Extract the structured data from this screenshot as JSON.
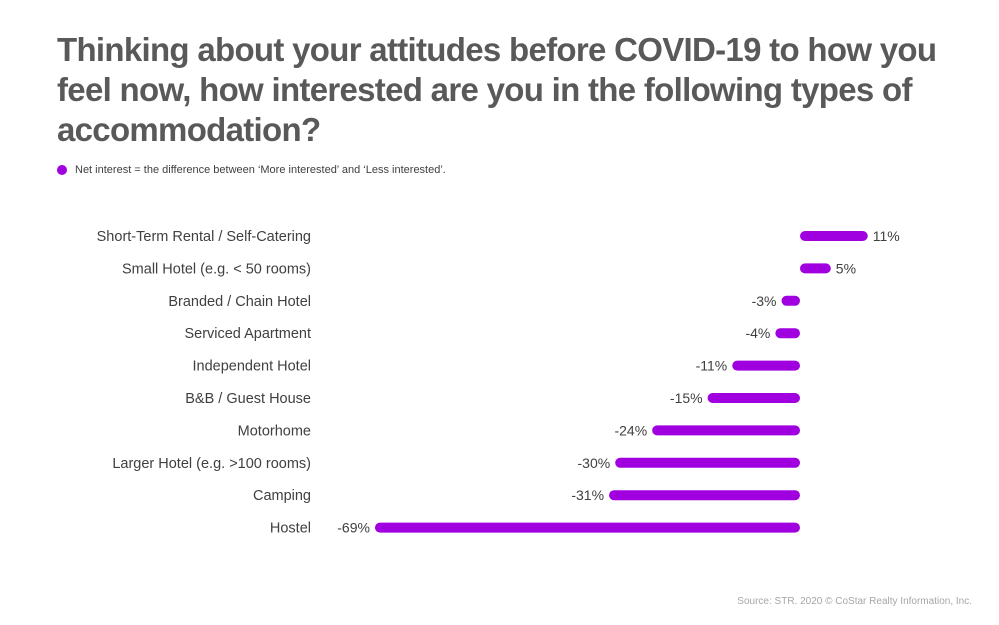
{
  "title": "Thinking about your attitudes before COVID-19 to how you feel now, how interested are you in the following types of accommodation?",
  "legend": {
    "label": "Net interest = the difference between ‘More interested’ and ‘Less interested’."
  },
  "source": "Source: STR. 2020 © CoStar Realty Information, Inc.",
  "colors": {
    "bar": "#a000e0",
    "label": "#404040",
    "title": "#595959"
  },
  "chart_data": {
    "type": "bar",
    "orientation": "horizontal",
    "categories": [
      "Short-Term Rental / Self-Catering",
      "Small Hotel (e.g. < 50 rooms)",
      "Branded / Chain Hotel",
      "Serviced Apartment",
      "Independent Hotel",
      "B&B / Guest House",
      "Motorhome",
      "Larger Hotel (e.g. >100 rooms)",
      "Camping",
      "Hostel"
    ],
    "series": [
      {
        "name": "Net interest = the difference between ‘More interested’ and ‘Less interested’.",
        "values": [
          11,
          5,
          -3,
          -4,
          -11,
          -15,
          -24,
          -30,
          -31,
          -69
        ]
      }
    ],
    "value_labels": [
      "11%",
      "5%",
      "-3%",
      "-4%",
      "-11%",
      "-15%",
      "-24%",
      "-30%",
      "-31%",
      "-69%"
    ],
    "xlim": [
      -69,
      11
    ],
    "grid": false,
    "legend_position": "top-left"
  }
}
